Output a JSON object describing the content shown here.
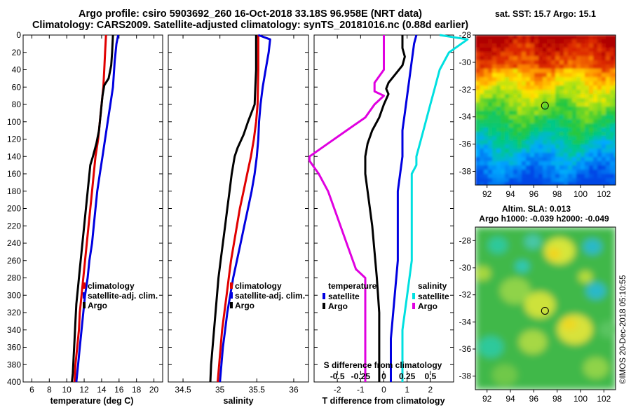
{
  "title": {
    "line1": "Argo profile: csiro 5903692_260 16-Oct-2018 33.18S 96.958E (NRT data)",
    "line2": "Climatology: CARS2009. Satellite-adjusted climatology: synTS_20181016.nc (0.88d earlier)"
  },
  "timestamp": "©IMOS 20-Dec-2018 05:10:55",
  "colors": {
    "climatology": "#e00000",
    "satellite_adj": "#0000e0",
    "argo": "#000000",
    "satellite_s": "#00e0e0",
    "argo_s": "#e000e0"
  },
  "chart_data": [
    {
      "type": "line",
      "id": "temperature",
      "xlabel": "temperature (deg C)",
      "ylabel": "",
      "xlim": [
        5,
        21
      ],
      "ylim": [
        400,
        0
      ],
      "x_ticks": [
        6,
        8,
        10,
        12,
        14,
        16,
        18,
        20
      ],
      "y_ticks": [
        0,
        20,
        40,
        60,
        80,
        100,
        120,
        140,
        160,
        180,
        200,
        220,
        240,
        260,
        280,
        300,
        320,
        340,
        360,
        380,
        400
      ],
      "legend": [
        "climatology",
        "satellite-adj. clim.",
        "Argo"
      ],
      "series": [
        {
          "name": "climatology",
          "color": "#e00000",
          "points": [
            [
              14.5,
              0
            ],
            [
              14.4,
              20
            ],
            [
              14.3,
              40
            ],
            [
              14.2,
              60
            ],
            [
              14.0,
              80
            ],
            [
              13.8,
              100
            ],
            [
              13.6,
              120
            ],
            [
              13.3,
              140
            ],
            [
              13.1,
              160
            ],
            [
              12.9,
              180
            ],
            [
              12.7,
              200
            ],
            [
              12.5,
              220
            ],
            [
              12.3,
              240
            ],
            [
              12.1,
              260
            ],
            [
              11.9,
              280
            ],
            [
              11.7,
              300
            ],
            [
              11.5,
              320
            ],
            [
              11.4,
              340
            ],
            [
              11.2,
              360
            ],
            [
              11.0,
              380
            ],
            [
              10.9,
              400
            ]
          ]
        },
        {
          "name": "satellite-adj. clim.",
          "color": "#0000e0",
          "points": [
            [
              15.9,
              0
            ],
            [
              15.7,
              10
            ],
            [
              15.5,
              30
            ],
            [
              15.3,
              60
            ],
            [
              15.0,
              80
            ],
            [
              14.7,
              100
            ],
            [
              14.4,
              120
            ],
            [
              14.1,
              140
            ],
            [
              13.8,
              160
            ],
            [
              13.5,
              180
            ],
            [
              13.3,
              200
            ],
            [
              13.1,
              220
            ],
            [
              12.9,
              240
            ],
            [
              12.6,
              260
            ],
            [
              12.4,
              280
            ],
            [
              12.1,
              300
            ],
            [
              11.9,
              320
            ],
            [
              11.7,
              340
            ],
            [
              11.5,
              360
            ],
            [
              11.3,
              380
            ],
            [
              11.1,
              400
            ]
          ]
        },
        {
          "name": "Argo",
          "color": "#000000",
          "points": [
            [
              15.3,
              0
            ],
            [
              15.2,
              20
            ],
            [
              15.1,
              35
            ],
            [
              14.8,
              50
            ],
            [
              14.3,
              58
            ],
            [
              14.1,
              70
            ],
            [
              13.9,
              90
            ],
            [
              13.7,
              110
            ],
            [
              13.4,
              125
            ],
            [
              13.0,
              140
            ],
            [
              12.7,
              150
            ],
            [
              12.5,
              170
            ],
            [
              12.3,
              190
            ],
            [
              12.1,
              210
            ],
            [
              11.9,
              230
            ],
            [
              11.7,
              250
            ],
            [
              11.5,
              270
            ],
            [
              11.3,
              290
            ],
            [
              11.1,
              310
            ],
            [
              11.0,
              330
            ],
            [
              10.9,
              350
            ],
            [
              10.8,
              370
            ],
            [
              10.7,
              390
            ],
            [
              10.6,
              400
            ]
          ]
        }
      ]
    },
    {
      "type": "line",
      "id": "salinity",
      "xlabel": "salinity",
      "ylabel": "",
      "xlim": [
        34.3,
        36.2
      ],
      "ylim": [
        400,
        0
      ],
      "x_ticks": [
        34.5,
        35,
        35.5,
        36
      ],
      "y_ticks": [
        0,
        20,
        40,
        60,
        80,
        100,
        120,
        140,
        160,
        180,
        200,
        220,
        240,
        260,
        280,
        300,
        320,
        340,
        360,
        380,
        400
      ],
      "legend": [
        "climatology",
        "satellite-adj. clim.",
        "Argo"
      ],
      "series": [
        {
          "name": "climatology",
          "color": "#e00000",
          "points": [
            [
              35.52,
              0
            ],
            [
              35.52,
              40
            ],
            [
              35.51,
              80
            ],
            [
              35.49,
              100
            ],
            [
              35.46,
              120
            ],
            [
              35.42,
              140
            ],
            [
              35.37,
              160
            ],
            [
              35.32,
              180
            ],
            [
              35.27,
              200
            ],
            [
              35.23,
              220
            ],
            [
              35.19,
              240
            ],
            [
              35.15,
              260
            ],
            [
              35.12,
              280
            ],
            [
              35.09,
              300
            ],
            [
              35.06,
              320
            ],
            [
              35.03,
              340
            ],
            [
              35.01,
              360
            ],
            [
              34.99,
              380
            ],
            [
              34.97,
              400
            ]
          ]
        },
        {
          "name": "satellite-adj. clim.",
          "color": "#0000e0",
          "points": [
            [
              35.52,
              0
            ],
            [
              35.68,
              5
            ],
            [
              35.66,
              20
            ],
            [
              35.62,
              40
            ],
            [
              35.58,
              60
            ],
            [
              35.55,
              80
            ],
            [
              35.53,
              100
            ],
            [
              35.52,
              120
            ],
            [
              35.5,
              140
            ],
            [
              35.47,
              160
            ],
            [
              35.43,
              180
            ],
            [
              35.38,
              200
            ],
            [
              35.33,
              220
            ],
            [
              35.28,
              240
            ],
            [
              35.23,
              260
            ],
            [
              35.18,
              280
            ],
            [
              35.14,
              300
            ],
            [
              35.1,
              320
            ],
            [
              35.07,
              340
            ],
            [
              35.04,
              360
            ],
            [
              35.02,
              380
            ],
            [
              35.0,
              400
            ]
          ]
        },
        {
          "name": "Argo",
          "color": "#000000",
          "points": [
            [
              35.49,
              0
            ],
            [
              35.49,
              40
            ],
            [
              35.48,
              60
            ],
            [
              35.47,
              80
            ],
            [
              35.38,
              100
            ],
            [
              35.32,
              115
            ],
            [
              35.24,
              130
            ],
            [
              35.2,
              140
            ],
            [
              35.16,
              160
            ],
            [
              35.13,
              180
            ],
            [
              35.1,
              200
            ],
            [
              35.07,
              220
            ],
            [
              35.04,
              240
            ],
            [
              35.01,
              260
            ],
            [
              34.98,
              280
            ],
            [
              34.96,
              300
            ],
            [
              34.94,
              320
            ],
            [
              34.92,
              340
            ],
            [
              34.9,
              360
            ],
            [
              34.88,
              380
            ],
            [
              34.87,
              400
            ]
          ]
        }
      ]
    },
    {
      "type": "line",
      "id": "difference",
      "xlabel": "T difference from climatology",
      "top_axis_label": "S difference from climatology",
      "xlim": [
        -3,
        3
      ],
      "ylim": [
        400,
        0
      ],
      "x_ticks": [
        -2,
        -1,
        0,
        1,
        2
      ],
      "s_ticks": [
        -0.5,
        -0.25,
        0,
        0.25,
        0.5
      ],
      "s_tick_labels": [
        "-0.5",
        "-0.25",
        "0",
        "0.25",
        "0.5"
      ],
      "y_ticks": [
        0,
        20,
        40,
        60,
        80,
        100,
        120,
        140,
        160,
        180,
        200,
        220,
        240,
        260,
        280,
        300,
        320,
        340,
        360,
        380,
        400
      ],
      "legend_t_title": "temperature",
      "legend_s_title": "salinity",
      "legend_t": [
        "satellite",
        "Argo"
      ],
      "legend_s": [
        "satellite",
        "Argo"
      ],
      "series": [
        {
          "name": "T satellite",
          "color": "#0000e0",
          "points": [
            [
              1.4,
              0
            ],
            [
              1.3,
              10
            ],
            [
              1.2,
              30
            ],
            [
              1.1,
              50
            ],
            [
              1.0,
              70
            ],
            [
              0.9,
              90
            ],
            [
              0.8,
              110
            ],
            [
              0.8,
              140
            ],
            [
              0.7,
              160
            ],
            [
              0.6,
              180
            ],
            [
              0.6,
              220
            ],
            [
              0.6,
              260
            ],
            [
              0.5,
              290
            ],
            [
              0.4,
              320
            ],
            [
              0.3,
              350
            ],
            [
              0.3,
              400
            ]
          ]
        },
        {
          "name": "T Argo",
          "color": "#000000",
          "points": [
            [
              0.8,
              0
            ],
            [
              0.8,
              15
            ],
            [
              0.9,
              25
            ],
            [
              0.8,
              35
            ],
            [
              0.5,
              45
            ],
            [
              0.2,
              55
            ],
            [
              0.1,
              62
            ],
            [
              0.2,
              68
            ],
            [
              0.0,
              80
            ],
            [
              -0.2,
              95
            ],
            [
              -0.5,
              110
            ],
            [
              -0.7,
              125
            ],
            [
              -0.8,
              140
            ],
            [
              -0.8,
              160
            ],
            [
              -0.7,
              180
            ],
            [
              -0.6,
              200
            ],
            [
              -0.5,
              220
            ],
            [
              -0.4,
              250
            ],
            [
              -0.3,
              280
            ],
            [
              -0.2,
              320
            ],
            [
              -0.2,
              360
            ],
            [
              -0.2,
              400
            ]
          ]
        },
        {
          "name": "S satellite",
          "color": "#00e0e0",
          "points": [
            [
              0.6,
              0
            ],
            [
              0.9,
              5
            ],
            [
              0.7,
              20
            ],
            [
              0.6,
              40
            ],
            [
              0.55,
              60
            ],
            [
              0.5,
              80
            ],
            [
              0.45,
              100
            ],
            [
              0.4,
              120
            ],
            [
              0.35,
              140
            ],
            [
              0.35,
              150
            ],
            [
              0.3,
              160
            ],
            [
              0.3,
              200
            ],
            [
              0.3,
              260
            ],
            [
              0.25,
              300
            ],
            [
              0.2,
              340
            ],
            [
              0.2,
              400
            ]
          ]
        },
        {
          "name": "S Argo",
          "color": "#e000e0",
          "points": [
            [
              0.0,
              0
            ],
            [
              0.0,
              20
            ],
            [
              0.0,
              40
            ],
            [
              -0.1,
              55
            ],
            [
              -0.1,
              65
            ],
            [
              0.0,
              70
            ],
            [
              -0.1,
              80
            ],
            [
              -0.2,
              95
            ],
            [
              -0.4,
              110
            ],
            [
              -0.6,
              125
            ],
            [
              -0.8,
              140
            ],
            [
              -0.8,
              145
            ],
            [
              -0.7,
              160
            ],
            [
              -0.6,
              180
            ],
            [
              -0.5,
              210
            ],
            [
              -0.4,
              240
            ],
            [
              -0.3,
              270
            ],
            [
              -0.2,
              280
            ],
            [
              -0.2,
              320
            ],
            [
              -0.2,
              360
            ],
            [
              -0.2,
              400
            ]
          ]
        }
      ]
    },
    {
      "type": "heatmap",
      "id": "sst_map",
      "title": "sat. SST: 15.7 Argo: 15.1",
      "xlim": [
        91,
        103
      ],
      "ylim": [
        -39,
        -28
      ],
      "x_ticks": [
        92,
        94,
        96,
        98,
        100,
        102
      ],
      "y_ticks": [
        -28,
        -30,
        -32,
        -34,
        -36,
        -38
      ],
      "marker": {
        "lon": 96.958,
        "lat": -33.18
      }
    },
    {
      "type": "heatmap",
      "id": "sla_map",
      "title1": "Altim. SLA: 0.013",
      "title2": "Argo h1000: -0.039 h2000: -0.049",
      "xlim": [
        91,
        103
      ],
      "ylim": [
        -39,
        -27
      ],
      "x_ticks": [
        92,
        94,
        96,
        98,
        100,
        102
      ],
      "y_ticks": [
        -28,
        -30,
        -32,
        -34,
        -36,
        -38
      ],
      "marker": {
        "lon": 96.958,
        "lat": -33.18
      }
    }
  ]
}
